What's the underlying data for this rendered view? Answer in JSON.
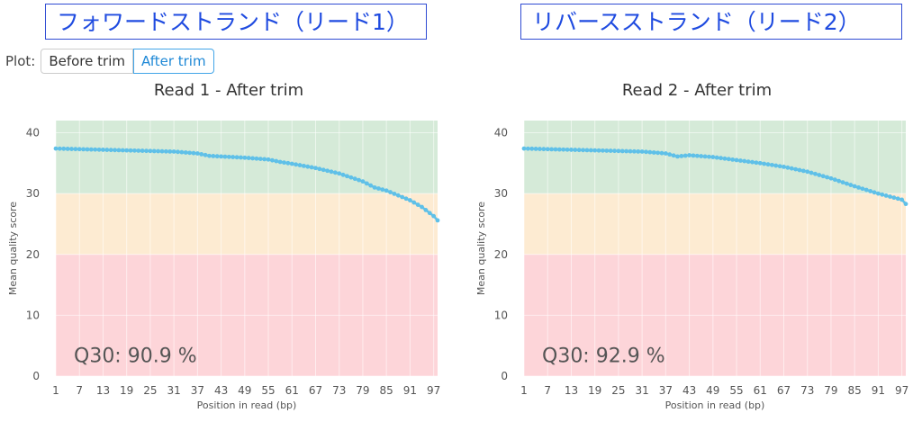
{
  "callouts": {
    "forward": "フォワードストランド（リード1）",
    "reverse": "リバースストランド（リード2）"
  },
  "plot_toggle": {
    "label": "Plot:",
    "options": [
      "Before trim",
      "After trim"
    ],
    "selected": "After trim"
  },
  "colors": {
    "good_zone": "#d5ead8",
    "ok_zone": "#fdebd2",
    "bad_zone": "#fdd5d9",
    "line": "#5fc0e8",
    "toggle_active": "#1e88d6"
  },
  "chart_data": [
    {
      "type": "line",
      "title": "Read 1 - After trim",
      "xlabel": "Position in read (bp)",
      "ylabel": "Mean quality score",
      "xlim": [
        1,
        98
      ],
      "ylim": [
        0,
        42
      ],
      "x_ticks": [
        1,
        7,
        13,
        19,
        25,
        31,
        37,
        43,
        49,
        55,
        61,
        67,
        73,
        79,
        85,
        91,
        97
      ],
      "y_ticks": [
        0,
        10,
        20,
        30,
        40
      ],
      "zones": [
        {
          "from": 30,
          "to": 42,
          "color": "#d5ead8"
        },
        {
          "from": 20,
          "to": 30,
          "color": "#fdebd2"
        },
        {
          "from": 0,
          "to": 20,
          "color": "#fdd5d9"
        }
      ],
      "annotation": "Q30: 90.9 %",
      "series": [
        {
          "x": [
            1,
            7,
            13,
            19,
            25,
            31,
            37,
            40,
            43,
            49,
            55,
            58,
            61,
            67,
            73,
            79,
            82,
            85,
            91,
            94,
            97,
            98
          ],
          "y": [
            37.4,
            37.3,
            37.2,
            37.1,
            37.0,
            36.9,
            36.6,
            36.2,
            36.1,
            35.9,
            35.6,
            35.2,
            34.9,
            34.2,
            33.3,
            32.0,
            31.0,
            30.5,
            28.9,
            27.8,
            26.3,
            25.6
          ]
        }
      ]
    },
    {
      "type": "line",
      "title": "Read 2 - After trim",
      "xlabel": "Position in read (bp)",
      "ylabel": "Mean quality score",
      "xlim": [
        1,
        98
      ],
      "ylim": [
        0,
        42
      ],
      "x_ticks": [
        1,
        7,
        13,
        19,
        25,
        31,
        37,
        43,
        49,
        55,
        61,
        67,
        73,
        79,
        85,
        91,
        97
      ],
      "y_ticks": [
        0,
        10,
        20,
        30,
        40
      ],
      "zones": [
        {
          "from": 30,
          "to": 42,
          "color": "#d5ead8"
        },
        {
          "from": 20,
          "to": 30,
          "color": "#fdebd2"
        },
        {
          "from": 0,
          "to": 20,
          "color": "#fdd5d9"
        }
      ],
      "annotation": "Q30: 92.9 %",
      "series": [
        {
          "x": [
            1,
            7,
            13,
            19,
            25,
            31,
            37,
            40,
            43,
            49,
            55,
            61,
            67,
            73,
            79,
            85,
            91,
            94,
            97,
            98
          ],
          "y": [
            37.4,
            37.3,
            37.2,
            37.1,
            37.0,
            36.9,
            36.6,
            36.1,
            36.3,
            36.0,
            35.5,
            35.0,
            34.4,
            33.6,
            32.5,
            31.2,
            30.0,
            29.5,
            29.0,
            28.3
          ]
        }
      ]
    }
  ]
}
